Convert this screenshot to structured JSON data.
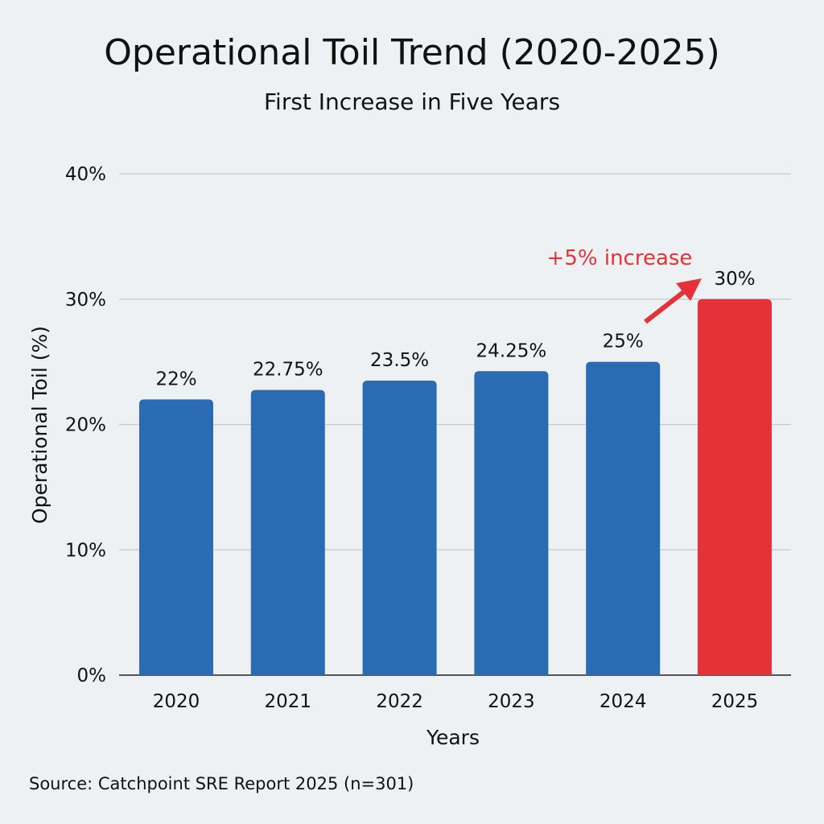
{
  "chart_data": {
    "type": "bar",
    "title": "Operational Toil Trend (2020-2025)",
    "subtitle": "First Increase in Five Years",
    "xlabel": "Years",
    "ylabel": "Operational Toil (%)",
    "ylim": [
      0,
      40
    ],
    "yticks": [
      "0%",
      "10%",
      "20%",
      "30%",
      "40%"
    ],
    "grid": true,
    "categories": [
      "2020",
      "2021",
      "2022",
      "2023",
      "2024",
      "2025"
    ],
    "values": [
      22,
      22.75,
      23.5,
      24.25,
      25,
      30
    ],
    "data_labels": [
      "22%",
      "22.75%",
      "23.5%",
      "24.25%",
      "25%",
      "30%"
    ],
    "colors": [
      "#2a6cb3",
      "#2a6cb3",
      "#2a6cb3",
      "#2a6cb3",
      "#2a6cb3",
      "#e53238"
    ],
    "annotation": {
      "text": "+5% increase",
      "color": "#e53238"
    },
    "source": "Source: Catchpoint SRE Report 2025 (n=301)"
  }
}
